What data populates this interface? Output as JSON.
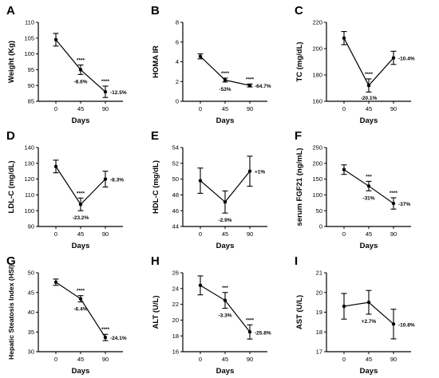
{
  "figure": {
    "panels": [
      {
        "letter": "A",
        "ylabel": "Weight (Kg)",
        "xlabel": "Days"
      },
      {
        "letter": "B",
        "ylabel": "HOMA IR",
        "xlabel": "Days"
      },
      {
        "letter": "C",
        "ylabel": "TC (mg/dL)",
        "xlabel": "Days"
      },
      {
        "letter": "D",
        "ylabel": "LDL-C (mg/dL)",
        "xlabel": "Days"
      },
      {
        "letter": "E",
        "ylabel": "HDL-C (mg/dL)",
        "xlabel": "Days"
      },
      {
        "letter": "F",
        "ylabel": "serum FGF21 (ng/mL)",
        "xlabel": "Days"
      },
      {
        "letter": "G",
        "ylabel": "Hepatic Steatosis Index (HSI)",
        "xlabel": "Days"
      },
      {
        "letter": "H",
        "ylabel": "ALT (U/L)",
        "xlabel": "Days"
      },
      {
        "letter": "I",
        "ylabel": "AST (U/L)",
        "xlabel": "Days"
      }
    ]
  },
  "chart_data": [
    {
      "type": "line",
      "panel": "A",
      "ylabel": "Weight (Kg)",
      "xlabel": "Days",
      "categories": [
        "0",
        "45",
        "90"
      ],
      "values": [
        104.5,
        95,
        88
      ],
      "errors": [
        2,
        1.5,
        1.8
      ],
      "ylim": [
        85,
        110
      ],
      "yticks": [
        85,
        90,
        95,
        100,
        105,
        110
      ],
      "significance": [
        "",
        "****",
        "****"
      ],
      "percent_change": [
        "",
        "-8.6%",
        "-12.5%"
      ]
    },
    {
      "type": "line",
      "panel": "B",
      "ylabel": "HOMA IR",
      "xlabel": "Days",
      "categories": [
        "0",
        "45",
        "90"
      ],
      "values": [
        4.55,
        2.15,
        1.6
      ],
      "errors": [
        0.25,
        0.2,
        0.15
      ],
      "ylim": [
        0,
        8
      ],
      "yticks": [
        0,
        2,
        4,
        6,
        8
      ],
      "significance": [
        "",
        "****",
        "****"
      ],
      "percent_change": [
        "",
        "-53%",
        "-64.7%"
      ]
    },
    {
      "type": "line",
      "panel": "C",
      "ylabel": "TC (mg/dL)",
      "xlabel": "Days",
      "categories": [
        "0",
        "45",
        "90"
      ],
      "values": [
        208,
        172,
        193
      ],
      "errors": [
        5,
        5,
        5
      ],
      "ylim": [
        160,
        220
      ],
      "yticks": [
        160,
        180,
        200,
        220
      ],
      "significance": [
        "",
        "****",
        ""
      ],
      "percent_change": [
        "",
        "-20.1%",
        "-10.4%"
      ]
    },
    {
      "type": "line",
      "panel": "D",
      "ylabel": "LDL-C (mg/dL)",
      "xlabel": "Days",
      "categories": [
        "0",
        "45",
        "90"
      ],
      "values": [
        128,
        104,
        120
      ],
      "errors": [
        4,
        4,
        5
      ],
      "ylim": [
        90,
        140
      ],
      "yticks": [
        90,
        100,
        110,
        120,
        130,
        140
      ],
      "significance": [
        "",
        "****",
        ""
      ],
      "percent_change": [
        "",
        "-23.2%",
        "-8.3%"
      ]
    },
    {
      "type": "line",
      "panel": "E",
      "ylabel": "HDL-C (mg/dL)",
      "xlabel": "Days",
      "categories": [
        "0",
        "45",
        "90"
      ],
      "values": [
        49.8,
        47.1,
        51
      ],
      "errors": [
        1.6,
        1.4,
        1.9
      ],
      "ylim": [
        44,
        54
      ],
      "yticks": [
        44,
        46,
        48,
        50,
        52,
        54
      ],
      "significance": [
        "",
        "",
        ""
      ],
      "percent_change": [
        "",
        "-2.9%",
        "+1%"
      ]
    },
    {
      "type": "line",
      "panel": "F",
      "ylabel": "serum FGF21 (ng/mL)",
      "xlabel": "Days",
      "categories": [
        "0",
        "45",
        "90"
      ],
      "values": [
        180,
        128,
        73
      ],
      "errors": [
        15,
        15,
        18
      ],
      "ylim": [
        0,
        250
      ],
      "yticks": [
        0,
        50,
        100,
        150,
        200,
        250
      ],
      "significance": [
        "",
        "***",
        "****"
      ],
      "percent_change": [
        "",
        "-31%",
        "-37%"
      ]
    },
    {
      "type": "line",
      "panel": "G",
      "ylabel": "Hepatic Steatosis Index (HSI)",
      "xlabel": "Days",
      "categories": [
        "0",
        "45",
        "90"
      ],
      "values": [
        47.6,
        43.4,
        33.6
      ],
      "errors": [
        0.8,
        0.8,
        0.8
      ],
      "ylim": [
        30,
        50
      ],
      "yticks": [
        30,
        35,
        40,
        45,
        50
      ],
      "significance": [
        "",
        "****",
        "****"
      ],
      "percent_change": [
        "",
        "-6.4%",
        "-24.1%"
      ]
    },
    {
      "type": "line",
      "panel": "H",
      "ylabel": "ALT (U/L)",
      "xlabel": "Days",
      "categories": [
        "0",
        "45",
        "90"
      ],
      "values": [
        24.4,
        22.5,
        18.5
      ],
      "errors": [
        1.2,
        1.0,
        0.9
      ],
      "ylim": [
        16,
        26
      ],
      "yticks": [
        16,
        18,
        20,
        22,
        24,
        26
      ],
      "significance": [
        "",
        "***",
        "****"
      ],
      "percent_change": [
        "",
        "-3.3%",
        "-25.8%"
      ]
    },
    {
      "type": "line",
      "panel": "I",
      "ylabel": "AST (U/L)",
      "xlabel": "Days",
      "categories": [
        "0",
        "45",
        "90"
      ],
      "values": [
        19.3,
        19.5,
        18.4
      ],
      "errors": [
        0.65,
        0.6,
        0.75
      ],
      "ylim": [
        17,
        21
      ],
      "yticks": [
        17,
        18,
        19,
        20,
        21
      ],
      "significance": [
        "",
        "",
        ""
      ],
      "percent_change": [
        "",
        "+2.7%",
        "-10.8%"
      ]
    }
  ]
}
